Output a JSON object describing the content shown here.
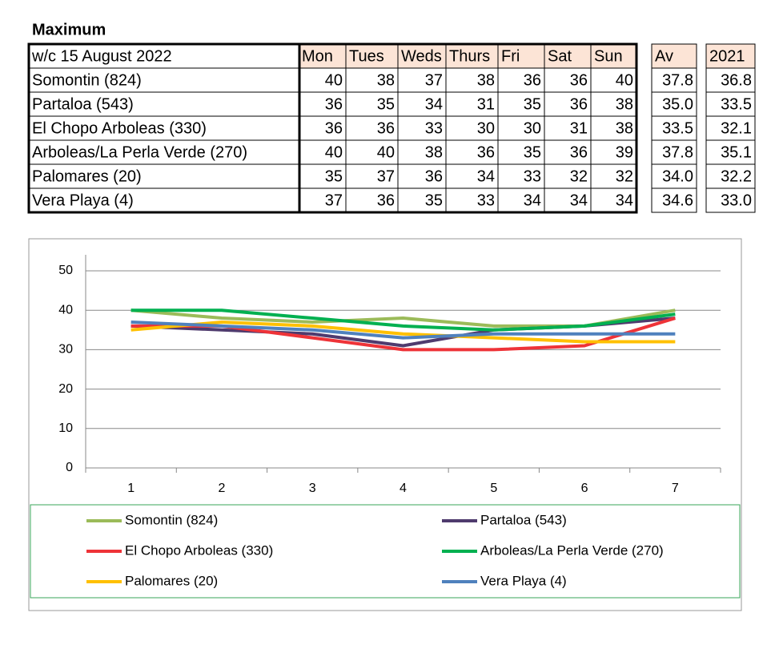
{
  "header": {
    "title": "Maximum"
  },
  "table": {
    "header": [
      "w/c 15 August 2022",
      "Mon",
      "Tues",
      "Weds",
      "Thurs",
      "Fri",
      "Sat",
      "Sun",
      "Av",
      "2021"
    ],
    "rows": [
      [
        "Somontin (824)",
        "40",
        "38",
        "37",
        "38",
        "36",
        "36",
        "40",
        "37.8",
        "36.8"
      ],
      [
        "Partaloa (543)",
        "36",
        "35",
        "34",
        "31",
        "35",
        "36",
        "38",
        "35.0",
        "33.5"
      ],
      [
        "El Chopo  Arboleas (330)",
        "36",
        "36",
        "33",
        "30",
        "30",
        "31",
        "38",
        "33.5",
        "32.1"
      ],
      [
        "Arboleas/La Perla Verde (270)",
        "40",
        "40",
        "38",
        "36",
        "35",
        "36",
        "39",
        "37.8",
        "35.1"
      ],
      [
        "Palomares (20)",
        "35",
        "37",
        "36",
        "34",
        "33",
        "32",
        "32",
        "34.0",
        "32.2"
      ],
      [
        "Vera Playa (4)",
        "37",
        "36",
        "35",
        "33",
        "34",
        "34",
        "34",
        "34.6",
        "33.0"
      ]
    ]
  },
  "chart_data": {
    "type": "line",
    "categories": [
      "1",
      "2",
      "3",
      "4",
      "5",
      "6",
      "7"
    ],
    "ylim": [
      0,
      50
    ],
    "yticks": [
      0,
      10,
      20,
      30,
      40,
      50
    ],
    "grid": true,
    "series": [
      {
        "name": "Somontin (824)",
        "color": "#9bbb59",
        "values": [
          40,
          38,
          37,
          38,
          36,
          36,
          40
        ]
      },
      {
        "name": "Partaloa (543)",
        "color": "#4f3b6e",
        "values": [
          36,
          35,
          34,
          31,
          35,
          36,
          38
        ]
      },
      {
        "name": "El Chopo  Arboleas (330)",
        "color": "#ee3338",
        "values": [
          36,
          36,
          33,
          30,
          30,
          31,
          38
        ]
      },
      {
        "name": "Arboleas/La Perla Verde (270)",
        "color": "#00b050",
        "values": [
          40,
          40,
          38,
          36,
          35,
          36,
          39
        ]
      },
      {
        "name": "Palomares (20)",
        "color": "#ffc000",
        "values": [
          35,
          37,
          36,
          34,
          33,
          32,
          32
        ]
      },
      {
        "name": "Vera Playa (4)",
        "color": "#4f81bd",
        "values": [
          37,
          36,
          35,
          33,
          34,
          34,
          34
        ]
      }
    ]
  }
}
